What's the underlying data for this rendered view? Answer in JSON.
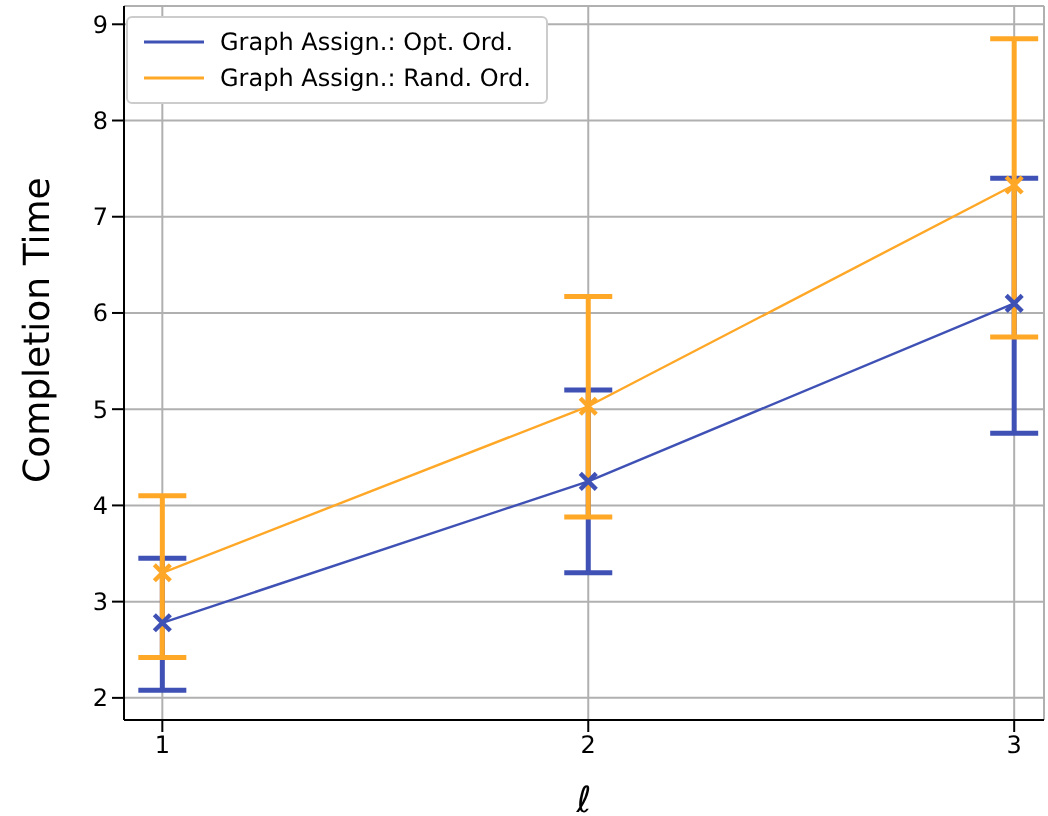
{
  "chart_data": {
    "type": "line",
    "xlabel": "ℓ",
    "ylabel": "Completion Time",
    "x": [
      1,
      2,
      3
    ],
    "series": [
      {
        "name": "Graph Assign.: Opt. Ord.",
        "color": "#3f51b5",
        "values": [
          2.78,
          4.25,
          6.1
        ],
        "errors": [
          [
            2.08,
            3.45
          ],
          [
            3.3,
            5.2
          ],
          [
            4.75,
            7.4
          ]
        ]
      },
      {
        "name": "Graph Assign.: Rand. Ord.",
        "color": "#ffa726",
        "values": [
          3.3,
          5.03,
          7.33
        ],
        "errors": [
          [
            2.42,
            4.1
          ],
          [
            3.88,
            6.17
          ],
          [
            5.75,
            8.85
          ]
        ]
      }
    ],
    "xlim": [
      0.91,
      3.07
    ],
    "xticks": [
      1,
      2,
      3
    ],
    "ylim": [
      1.77,
      9.19
    ],
    "yticks": [
      2,
      3,
      4,
      5,
      6,
      7,
      8,
      9
    ],
    "grid": true,
    "legend": "top left",
    "marker": "cross",
    "line_style": "solid"
  }
}
